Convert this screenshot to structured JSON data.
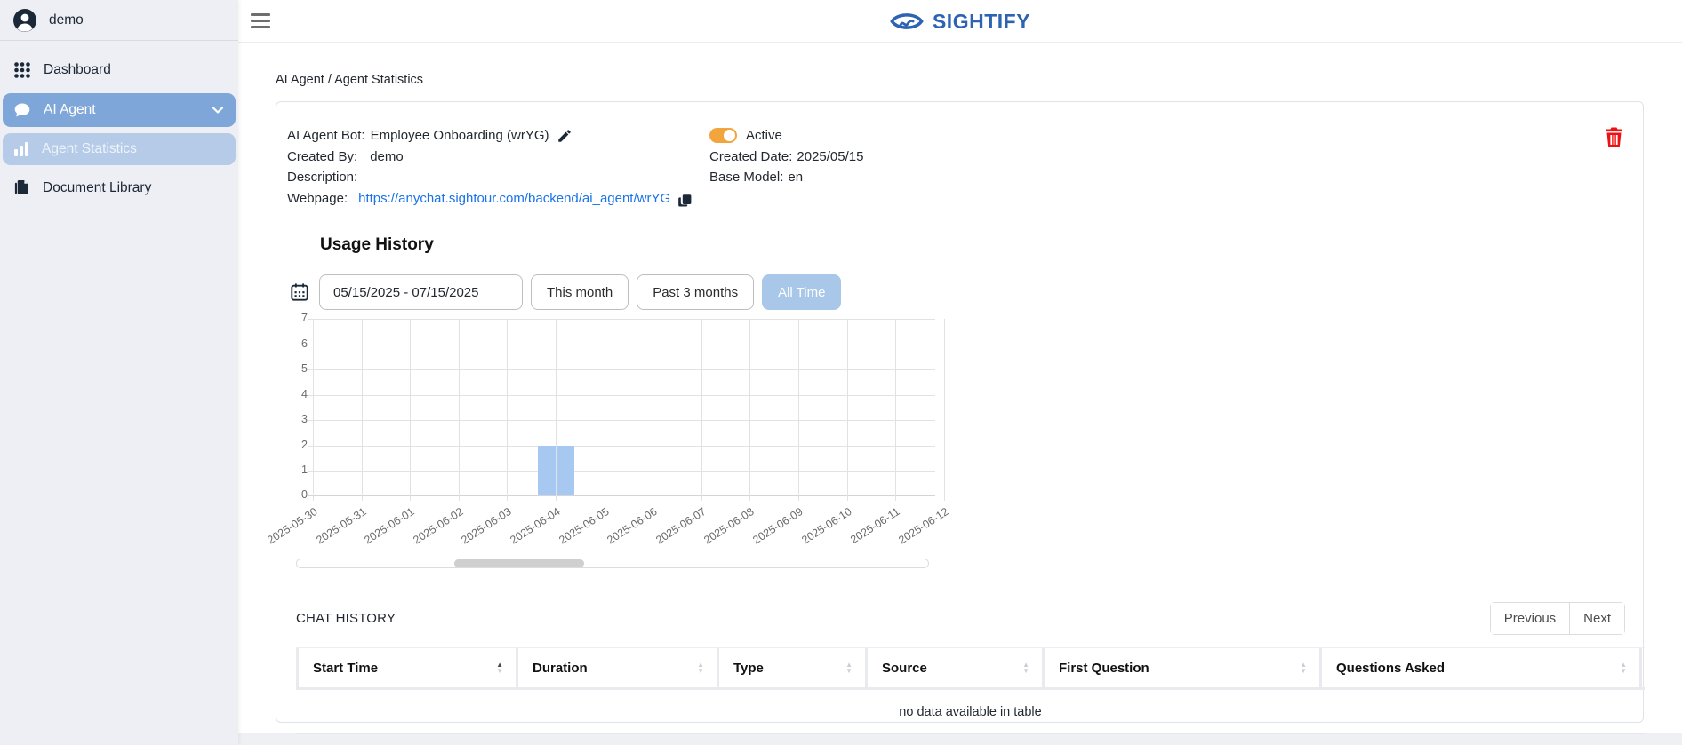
{
  "sidebar": {
    "user": "demo",
    "items": [
      {
        "label": "Dashboard"
      },
      {
        "label": "AI Agent"
      },
      {
        "label": "Agent Statistics"
      },
      {
        "label": "Document Library"
      }
    ]
  },
  "header": {
    "logo": "SIGHTIFY"
  },
  "breadcrumb": {
    "part1": "AI Agent",
    "separator": " / ",
    "part2": "Agent Statistics"
  },
  "agent": {
    "bot_label": "AI Agent Bot:",
    "bot_name": "Employee Onboarding (wrYG)",
    "created_by_label": "Created By:",
    "created_by": "demo",
    "description_label": "Description:",
    "description": "",
    "webpage_label": "Webpage:",
    "webpage_url": "https://anychat.sightour.com/backend/ai_agent/wrYG",
    "status": "Active",
    "created_date_label": "Created Date:",
    "created_date": "2025/05/15",
    "base_model_label": "Base Model:",
    "base_model": "en"
  },
  "usage": {
    "title": "Usage History",
    "date_range": "05/15/2025 - 07/15/2025",
    "filters": [
      "This month",
      "Past 3 months",
      "All Time"
    ],
    "active_filter": "All Time"
  },
  "chart_data": {
    "type": "bar",
    "title": "Usage History",
    "x": [
      "2025-05-30",
      "2025-05-31",
      "2025-06-01",
      "2025-06-02",
      "2025-06-03",
      "2025-06-04",
      "2025-06-05",
      "2025-06-06",
      "2025-06-07",
      "2025-06-08",
      "2025-06-09",
      "2025-06-10",
      "2025-06-11",
      "2025-06-12"
    ],
    "values": [
      0,
      0,
      0,
      0,
      0,
      2,
      0,
      0,
      0,
      0,
      0,
      0,
      0,
      0
    ],
    "ylim": [
      0,
      7
    ],
    "yticks": [
      0,
      1,
      2,
      3,
      4,
      5,
      6,
      7
    ],
    "xlabel": "",
    "ylabel": "",
    "grid": true,
    "bar_color": "#a6c8f1",
    "note": "horizontally scrollable, single bar of 2 on 2025-06-04"
  },
  "chat_history": {
    "title": "CHAT HISTORY",
    "pagination": {
      "previous": "Previous",
      "next": "Next"
    },
    "columns": [
      "Start Time",
      "Duration",
      "Type",
      "Source",
      "First Question",
      "Questions Asked"
    ],
    "sorted_column": "Start Time",
    "rows": [],
    "empty_text": "no data available in table"
  },
  "colors": {
    "brand_blue": "#2d63b2",
    "nav_selected": "#7ea6d8",
    "subnav_selected": "#b5cbe8",
    "link": "#1a73e8",
    "toggle_on": "#f2a53c",
    "bar": "#a6c8f1",
    "filter_active_bg": "#a9c7e8",
    "trash_red": "#ee1111",
    "sidebar_bg": "#edeff5"
  }
}
